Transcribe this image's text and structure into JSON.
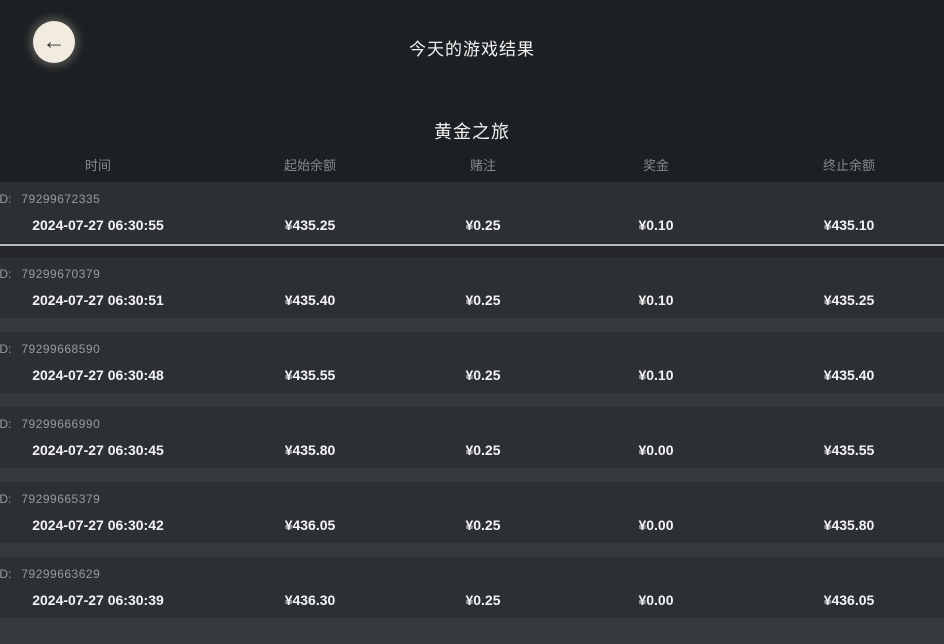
{
  "header": {
    "title": "今天的游戏结果",
    "back_icon": "←"
  },
  "game": {
    "name": "黄金之旅"
  },
  "table": {
    "id_label": "ID:",
    "columns": [
      "时间",
      "起始余额",
      "赌注",
      "奖金",
      "终止余额"
    ],
    "rows": [
      {
        "id": "79299672335",
        "time": "2024-07-27 06:30:55",
        "start": "¥435.25",
        "bet": "¥0.25",
        "prize": "¥0.10",
        "end": "¥435.10"
      },
      {
        "id": "79299670379",
        "time": "2024-07-27 06:30:51",
        "start": "¥435.40",
        "bet": "¥0.25",
        "prize": "¥0.10",
        "end": "¥435.25"
      },
      {
        "id": "79299668590",
        "time": "2024-07-27 06:30:48",
        "start": "¥435.55",
        "bet": "¥0.25",
        "prize": "¥0.10",
        "end": "¥435.40"
      },
      {
        "id": "79299666990",
        "time": "2024-07-27 06:30:45",
        "start": "¥435.80",
        "bet": "¥0.25",
        "prize": "¥0.00",
        "end": "¥435.55"
      },
      {
        "id": "79299665379",
        "time": "2024-07-27 06:30:42",
        "start": "¥436.05",
        "bet": "¥0.25",
        "prize": "¥0.00",
        "end": "¥435.80"
      },
      {
        "id": "79299663629",
        "time": "2024-07-27 06:30:39",
        "start": "¥436.30",
        "bet": "¥0.25",
        "prize": "¥0.00",
        "end": "¥436.05"
      }
    ]
  },
  "colors": {
    "page_bg": "#1d2023",
    "row_bg": "#2c2f34",
    "gap_bg": "#35383d",
    "scrollbar": "#b9babc",
    "back_button_bg": "#f1ecdf",
    "muted_text": "#85888c",
    "primary_text": "#f4f4f4"
  }
}
